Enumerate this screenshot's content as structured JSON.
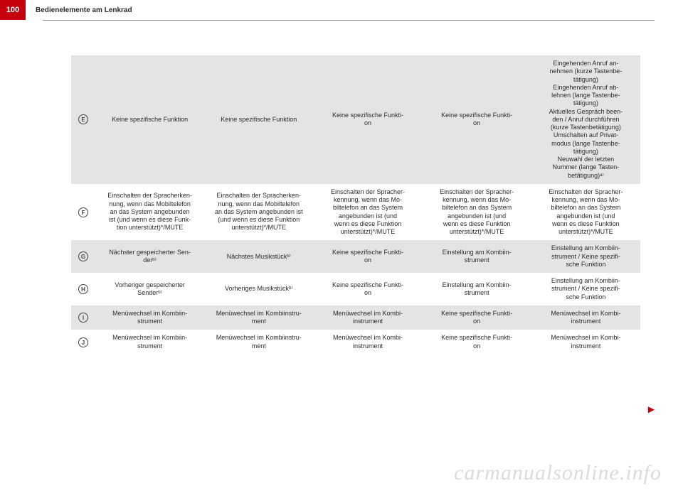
{
  "page_number": "100",
  "section_title": "Bedienelemente am Lenkrad",
  "watermark": "carmanualsonline.info",
  "colors": {
    "brand_red": "#c7000e",
    "row_gray": "#e6e4e2",
    "row_white": "#ffffff",
    "text": "#2b2b2b",
    "watermark": "#dddad7"
  },
  "table": {
    "column_count": 6,
    "rows": [
      {
        "marker": "E",
        "bg": "gray",
        "cells": [
          "Keine spezifische Funktion",
          "Keine spezifische Funktion",
          "Keine spezifische Funkti-\non",
          "Keine spezifische Funkti-\non",
          "Eingehenden Anruf an-\nnehmen (kurze Tastenbe-\ntätigung)\nEingehenden Anruf ab-\nlehnen (lange Tastenbe-\ntätigung)\nAktuelles Gespräch been-\nden / Anruf durchführen\n(kurze Tastenbetätigung)\nUmschalten auf Privat-\nmodus (lange Tastenbe-\ntätigung)\nNeuwahl der letzten\nNummer (lange Tasten-\nbetätigung)ᵃ⁾"
        ]
      },
      {
        "marker": "F",
        "bg": "white",
        "cells": [
          "Einschalten der Spracherken-\nnung, wenn das Mobiltelefon\nan das System angebunden\nist (und wenn es diese Funk-\ntion unterstützt)*/MUTE",
          "Einschalten der Spracherken-\nnung, wenn das Mobiltelefon\nan das System angebunden ist\n(und wenn es diese Funktion\nunterstützt)*/MUTE",
          "Einschalten der Spracher-\nkennung, wenn das Mo-\nbiltelefon an das System\nangebunden ist (und\nwenn es diese Funktion\nunterstützt)*/MUTE",
          "Einschalten der Spracher-\nkennung, wenn das Mo-\nbiltelefon an das System\nangebunden ist (und\nwenn es diese Funktion\nunterstützt)*/MUTE",
          "Einschalten der Spracher-\nkennung, wenn das Mo-\nbiltelefon an das System\nangebunden ist (und\nwenn es diese Funktion\nunterstützt)*/MUTE"
        ]
      },
      {
        "marker": "G",
        "bg": "gray",
        "cells": [
          "Nächster gespeicherter Sen-\nderᵇ⁾",
          "Nächstes Musikstückᵇ⁾",
          "Keine spezifische Funkti-\non",
          "Einstellung am Kombiin-\nstrument",
          "Einstellung am Kombiin-\nstrument / Keine spezifi-\nsche Funktion"
        ]
      },
      {
        "marker": "H",
        "bg": "white",
        "cells": [
          "Vorheriger gespeicherter\nSenderᵇ⁾",
          "Vorheriges Musikstückᵇ⁾",
          "Keine spezifische Funkti-\non",
          "Einstellung am Kombiin-\nstrument",
          "Einstellung am Kombiin-\nstrument / Keine spezifi-\nsche Funktion"
        ]
      },
      {
        "marker": "I",
        "bg": "gray",
        "cells": [
          "Menüwechsel im Kombiin-\nstrument",
          "Menüwechsel im Kombiinstru-\nment",
          "Menüwechsel im Kombi-\ninstrument",
          "Keine spezifische Funkti-\non",
          "Menüwechsel im Kombi-\ninstrument"
        ]
      },
      {
        "marker": "J",
        "bg": "white",
        "cells": [
          "Menüwechsel im Kombiin-\nstrument",
          "Menüwechsel im Kombiinstru-\nment",
          "Menüwechsel im Kombi-\ninstrument",
          "Keine spezifische Funkti-\non",
          "Menüwechsel im Kombi-\ninstrument"
        ]
      }
    ]
  }
}
